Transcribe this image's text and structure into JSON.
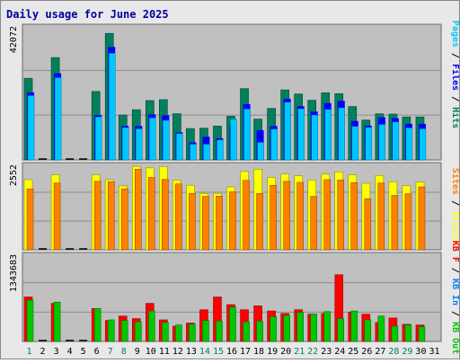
{
  "chart_data": [
    {
      "type": "bar",
      "title": "Daily usage for June 2025",
      "ylabel_max": "42072",
      "legend": [
        "Pages",
        "Files",
        "Hits"
      ],
      "categories": [
        "1",
        "2",
        "3",
        "4",
        "5",
        "6",
        "7",
        "8",
        "9",
        "10",
        "11",
        "12",
        "13",
        "14",
        "15",
        "16",
        "17",
        "18",
        "19",
        "20",
        "21",
        "22",
        "23",
        "24",
        "25",
        "26",
        "27",
        "28",
        "29",
        "30",
        "31"
      ],
      "weekend_days": [
        1,
        7,
        8,
        14,
        15,
        21,
        22,
        28,
        29
      ],
      "ylim": [
        0,
        42072
      ],
      "series": [
        {
          "name": "Hits",
          "color": "#00805c",
          "values": [
            26000,
            null,
            32600,
            null,
            null,
            21800,
            40300,
            14300,
            16000,
            18900,
            19200,
            14700,
            10000,
            10100,
            10800,
            13900,
            22700,
            13000,
            16400,
            22300,
            21000,
            19000,
            21400,
            21100,
            17000,
            12700,
            14700,
            14600,
            13700,
            13700,
            null
          ]
        },
        {
          "name": "Files",
          "color": "#0000ff",
          "values": [
            21500,
            null,
            27600,
            null,
            null,
            14300,
            36000,
            10800,
            10800,
            14500,
            14200,
            8800,
            5600,
            7400,
            6900,
            10600,
            17800,
            9500,
            10800,
            19500,
            17100,
            15400,
            18100,
            18800,
            12400,
            10900,
            13600,
            13300,
            11500,
            11500,
            null
          ]
        },
        {
          "name": "Pages",
          "color": "#00c8ff",
          "values": [
            20500,
            null,
            26200,
            null,
            null,
            13700,
            34000,
            10300,
            9900,
            13400,
            12600,
            8400,
            5000,
            5000,
            6400,
            13000,
            16200,
            5600,
            9800,
            18400,
            16300,
            14300,
            16100,
            16600,
            10700,
            10400,
            11300,
            12100,
            10200,
            9900,
            null
          ]
        }
      ]
    },
    {
      "type": "bar",
      "legend": [
        "Visits",
        "Sites"
      ],
      "ylabel_max": "2552",
      "ylim": [
        0,
        2552
      ],
      "series": [
        {
          "name": "Visits",
          "color": "#ffff00",
          "values": [
            2140,
            null,
            2290,
            null,
            null,
            2290,
            2140,
            1950,
            2550,
            2500,
            2540,
            2130,
            1970,
            1720,
            1720,
            1920,
            2390,
            2460,
            2210,
            2310,
            2260,
            2130,
            2310,
            2380,
            2290,
            2030,
            2270,
            2080,
            1960,
            2070,
            null
          ]
        },
        {
          "name": "Sites",
          "color": "#ff8000",
          "values": [
            1860,
            null,
            2040,
            null,
            null,
            2090,
            2080,
            1860,
            2460,
            2210,
            2150,
            2010,
            1720,
            1630,
            1640,
            1770,
            2120,
            1720,
            1970,
            2090,
            2060,
            1630,
            2140,
            2130,
            2050,
            1560,
            2040,
            1660,
            1710,
            1920,
            null
          ]
        }
      ]
    },
    {
      "type": "bar",
      "legend": [
        "KB F",
        "KB In",
        "KB Out"
      ],
      "ylabel_max": "1343683",
      "ylim": [
        0,
        1343683
      ],
      "series": [
        {
          "name": "KB F",
          "color": "#ff0000",
          "values": [
            700000,
            null,
            600000,
            null,
            null,
            520000,
            330000,
            400000,
            360000,
            600000,
            340000,
            240000,
            290000,
            500000,
            700000,
            580000,
            500000,
            560000,
            480000,
            440000,
            500000,
            430000,
            440000,
            1050000,
            460000,
            430000,
            300000,
            370000,
            270000,
            260000,
            null
          ]
        },
        {
          "name": "KB In",
          "color": "#0080ff",
          "values": [
            0,
            null,
            0,
            null,
            null,
            0,
            0,
            0,
            0,
            0,
            0,
            0,
            0,
            0,
            0,
            0,
            0,
            0,
            0,
            0,
            0,
            0,
            0,
            0,
            0,
            0,
            0,
            0,
            0,
            0,
            null
          ]
        },
        {
          "name": "KB Out",
          "color": "#00c800",
          "values": [
            650000,
            null,
            620000,
            null,
            null,
            520000,
            340000,
            330000,
            310000,
            480000,
            300000,
            260000,
            270000,
            330000,
            320000,
            540000,
            310000,
            320000,
            390000,
            410000,
            460000,
            430000,
            470000,
            360000,
            480000,
            340000,
            400000,
            240000,
            260000,
            230000,
            null
          ]
        }
      ]
    }
  ],
  "legend_colors": {
    "Pages": "#00c8ff",
    "Files": "#0000ff",
    "Hits": "#00805c",
    "Visits": "#ffff00",
    "Sites": "#ff8000",
    "KB F": "#ff0000",
    "KB In": "#0080ff",
    "KB Out": "#00c800",
    "separator": "#000000"
  }
}
